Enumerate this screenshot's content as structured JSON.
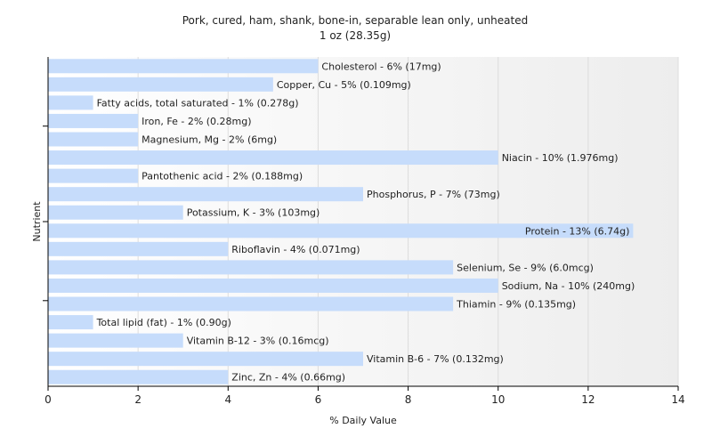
{
  "chart_data": {
    "type": "bar",
    "orientation": "horizontal",
    "title": "Pork, cured, ham, shank, bone-in, separable lean only, unheated",
    "subtitle": "1 oz (28.35g)",
    "xlabel": "% Daily Value",
    "ylabel": "Nutrient",
    "xlim": [
      0,
      14
    ],
    "xticks": [
      0,
      2,
      4,
      6,
      8,
      10,
      12,
      14
    ],
    "grid": true,
    "bar_color": "#c6dcfb",
    "categories": [
      "Cholesterol",
      "Copper, Cu",
      "Fatty acids, total saturated",
      "Iron, Fe",
      "Magnesium, Mg",
      "Niacin",
      "Pantothenic acid",
      "Phosphorus, P",
      "Potassium, K",
      "Protein",
      "Riboflavin",
      "Selenium, Se",
      "Sodium, Na",
      "Thiamin",
      "Total lipid (fat)",
      "Vitamin B-12",
      "Vitamin B-6",
      "Zinc, Zn"
    ],
    "values": [
      6,
      5,
      1,
      2,
      2,
      10,
      2,
      7,
      3,
      13,
      4,
      9,
      10,
      9,
      1,
      3,
      7,
      4
    ],
    "labels": [
      "Cholesterol - 6% (17mg)",
      "Copper, Cu - 5% (0.109mg)",
      "Fatty acids, total saturated - 1% (0.278g)",
      "Iron, Fe - 2% (0.28mg)",
      "Magnesium, Mg - 2% (6mg)",
      "Niacin - 10% (1.976mg)",
      "Pantothenic acid - 2% (0.188mg)",
      "Phosphorus, P - 7% (73mg)",
      "Potassium, K - 3% (103mg)",
      "Protein - 13% (6.74g)",
      "Riboflavin - 4% (0.071mg)",
      "Selenium, Se - 9% (6.0mcg)",
      "Sodium, Na - 10% (240mg)",
      "Thiamin - 9% (0.135mg)",
      "Total lipid (fat) - 1% (0.90g)",
      "Vitamin B-12 - 3% (0.16mcg)",
      "Vitamin B-6 - 7% (0.132mg)",
      "Zinc, Zn - 4% (0.66mg)"
    ]
  }
}
